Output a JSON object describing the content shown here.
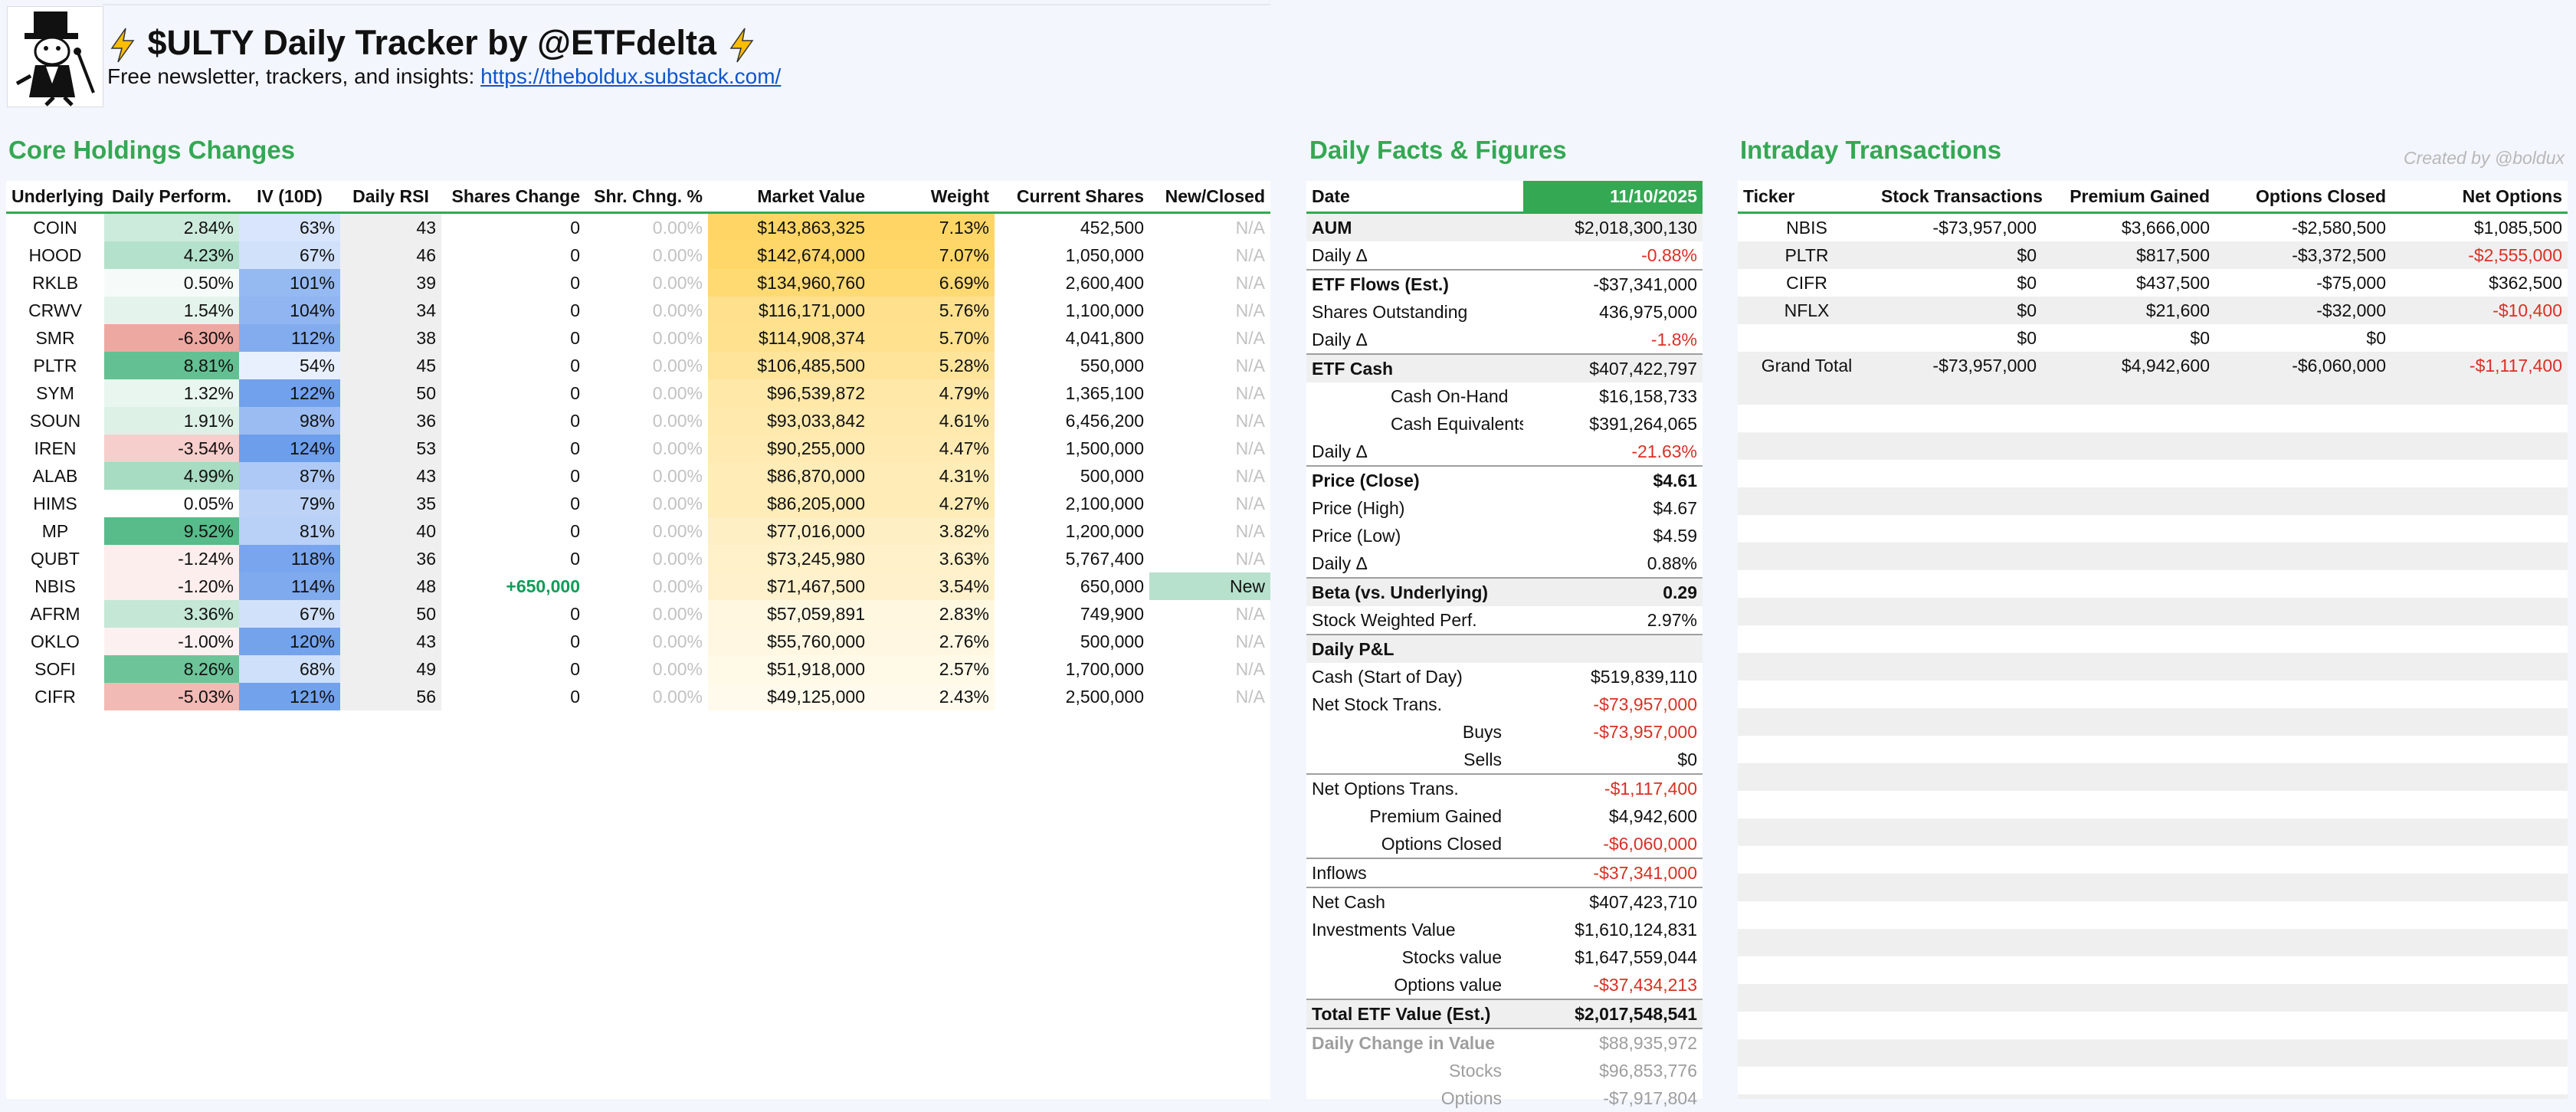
{
  "header": {
    "title": "$ULTY Daily Tracker by @ETFdelta",
    "subtitle_prefix": "Free newsletter, trackers, and insights:",
    "subtitle_link": "https://theboldux.substack.com/"
  },
  "colors": {
    "accent_green": "#34a853",
    "negative_red": "#d93025",
    "link_blue": "#1155cc",
    "weight_gold": "#fbc02d"
  },
  "holdings": {
    "title": "Core Holdings Changes",
    "columns": [
      "Underlying",
      "Daily Perform.",
      "IV (10D)",
      "Daily RSI",
      "Shares Change",
      "Shr. Chng. %",
      "Market Value",
      "Weight",
      "Current Shares",
      "New/Closed"
    ],
    "rows": [
      {
        "ticker": "COIN",
        "perf": "2.84%",
        "perf_num": 2.84,
        "iv": "63%",
        "iv_num": 63,
        "rsi": "43",
        "change": "0",
        "chg_pct": "0.00%",
        "mv": "$143,863,325",
        "weight": "7.13%",
        "weight_num": 7.13,
        "shares": "452,500",
        "status": "N/A"
      },
      {
        "ticker": "HOOD",
        "perf": "4.23%",
        "perf_num": 4.23,
        "iv": "67%",
        "iv_num": 67,
        "rsi": "46",
        "change": "0",
        "chg_pct": "0.00%",
        "mv": "$142,674,000",
        "weight": "7.07%",
        "weight_num": 7.07,
        "shares": "1,050,000",
        "status": "N/A"
      },
      {
        "ticker": "RKLB",
        "perf": "0.50%",
        "perf_num": 0.5,
        "iv": "101%",
        "iv_num": 101,
        "rsi": "39",
        "change": "0",
        "chg_pct": "0.00%",
        "mv": "$134,960,760",
        "weight": "6.69%",
        "weight_num": 6.69,
        "shares": "2,600,400",
        "status": "N/A"
      },
      {
        "ticker": "CRWV",
        "perf": "1.54%",
        "perf_num": 1.54,
        "iv": "104%",
        "iv_num": 104,
        "rsi": "34",
        "change": "0",
        "chg_pct": "0.00%",
        "mv": "$116,171,000",
        "weight": "5.76%",
        "weight_num": 5.76,
        "shares": "1,100,000",
        "status": "N/A"
      },
      {
        "ticker": "SMR",
        "perf": "-6.30%",
        "perf_num": -6.3,
        "iv": "112%",
        "iv_num": 112,
        "rsi": "38",
        "change": "0",
        "chg_pct": "0.00%",
        "mv": "$114,908,374",
        "weight": "5.70%",
        "weight_num": 5.7,
        "shares": "4,041,800",
        "status": "N/A"
      },
      {
        "ticker": "PLTR",
        "perf": "8.81%",
        "perf_num": 8.81,
        "iv": "54%",
        "iv_num": 54,
        "rsi": "45",
        "change": "0",
        "chg_pct": "0.00%",
        "mv": "$106,485,500",
        "weight": "5.28%",
        "weight_num": 5.28,
        "shares": "550,000",
        "status": "N/A"
      },
      {
        "ticker": "SYM",
        "perf": "1.32%",
        "perf_num": 1.32,
        "iv": "122%",
        "iv_num": 122,
        "rsi": "50",
        "change": "0",
        "chg_pct": "0.00%",
        "mv": "$96,539,872",
        "weight": "4.79%",
        "weight_num": 4.79,
        "shares": "1,365,100",
        "status": "N/A"
      },
      {
        "ticker": "SOUN",
        "perf": "1.91%",
        "perf_num": 1.91,
        "iv": "98%",
        "iv_num": 98,
        "rsi": "36",
        "change": "0",
        "chg_pct": "0.00%",
        "mv": "$93,033,842",
        "weight": "4.61%",
        "weight_num": 4.61,
        "shares": "6,456,200",
        "status": "N/A"
      },
      {
        "ticker": "IREN",
        "perf": "-3.54%",
        "perf_num": -3.54,
        "iv": "124%",
        "iv_num": 124,
        "rsi": "53",
        "change": "0",
        "chg_pct": "0.00%",
        "mv": "$90,255,000",
        "weight": "4.47%",
        "weight_num": 4.47,
        "shares": "1,500,000",
        "status": "N/A"
      },
      {
        "ticker": "ALAB",
        "perf": "4.99%",
        "perf_num": 4.99,
        "iv": "87%",
        "iv_num": 87,
        "rsi": "43",
        "change": "0",
        "chg_pct": "0.00%",
        "mv": "$86,870,000",
        "weight": "4.31%",
        "weight_num": 4.31,
        "shares": "500,000",
        "status": "N/A"
      },
      {
        "ticker": "HIMS",
        "perf": "0.05%",
        "perf_num": 0.05,
        "iv": "79%",
        "iv_num": 79,
        "rsi": "35",
        "change": "0",
        "chg_pct": "0.00%",
        "mv": "$86,205,000",
        "weight": "4.27%",
        "weight_num": 4.27,
        "shares": "2,100,000",
        "status": "N/A"
      },
      {
        "ticker": "MP",
        "perf": "9.52%",
        "perf_num": 9.52,
        "iv": "81%",
        "iv_num": 81,
        "rsi": "40",
        "change": "0",
        "chg_pct": "0.00%",
        "mv": "$77,016,000",
        "weight": "3.82%",
        "weight_num": 3.82,
        "shares": "1,200,000",
        "status": "N/A"
      },
      {
        "ticker": "QUBT",
        "perf": "-1.24%",
        "perf_num": -1.24,
        "iv": "118%",
        "iv_num": 118,
        "rsi": "36",
        "change": "0",
        "chg_pct": "0.00%",
        "mv": "$73,245,980",
        "weight": "3.63%",
        "weight_num": 3.63,
        "shares": "5,767,400",
        "status": "N/A"
      },
      {
        "ticker": "NBIS",
        "perf": "-1.20%",
        "perf_num": -1.2,
        "iv": "114%",
        "iv_num": 114,
        "rsi": "48",
        "change": "+650,000",
        "chg_pct": "0.00%",
        "mv": "$71,467,500",
        "weight": "3.54%",
        "weight_num": 3.54,
        "shares": "650,000",
        "status": "New"
      },
      {
        "ticker": "AFRM",
        "perf": "3.36%",
        "perf_num": 3.36,
        "iv": "67%",
        "iv_num": 67,
        "rsi": "50",
        "change": "0",
        "chg_pct": "0.00%",
        "mv": "$57,059,891",
        "weight": "2.83%",
        "weight_num": 2.83,
        "shares": "749,900",
        "status": "N/A"
      },
      {
        "ticker": "OKLO",
        "perf": "-1.00%",
        "perf_num": -1.0,
        "iv": "120%",
        "iv_num": 120,
        "rsi": "43",
        "change": "0",
        "chg_pct": "0.00%",
        "mv": "$55,760,000",
        "weight": "2.76%",
        "weight_num": 2.76,
        "shares": "500,000",
        "status": "N/A"
      },
      {
        "ticker": "SOFI",
        "perf": "8.26%",
        "perf_num": 8.26,
        "iv": "68%",
        "iv_num": 68,
        "rsi": "49",
        "change": "0",
        "chg_pct": "0.00%",
        "mv": "$51,918,000",
        "weight": "2.57%",
        "weight_num": 2.57,
        "shares": "1,700,000",
        "status": "N/A"
      },
      {
        "ticker": "CIFR",
        "perf": "-5.03%",
        "perf_num": -5.03,
        "iv": "121%",
        "iv_num": 121,
        "rsi": "56",
        "change": "0",
        "chg_pct": "0.00%",
        "mv": "$49,125,000",
        "weight": "2.43%",
        "weight_num": 2.43,
        "shares": "2,500,000",
        "status": "N/A"
      }
    ]
  },
  "facts": {
    "title": "Daily Facts & Figures",
    "date_label": "Date",
    "date_value": "11/10/2025",
    "rows": [
      {
        "label": "AUM",
        "value": "$2,018,300,130",
        "style": "bold",
        "shade": true,
        "line": false,
        "indent": 0,
        "tone": ""
      },
      {
        "label": "Daily Δ",
        "value": "-0.88%",
        "style": "",
        "shade": false,
        "line": false,
        "indent": 0,
        "tone": "red"
      },
      {
        "label": "ETF Flows (Est.)",
        "value": "-$37,341,000",
        "style": "bold",
        "shade": false,
        "line": true,
        "indent": 0,
        "tone": ""
      },
      {
        "label": "Shares Outstanding",
        "value": "436,975,000",
        "style": "",
        "shade": false,
        "line": false,
        "indent": 0,
        "tone": ""
      },
      {
        "label": "Daily Δ",
        "value": "-1.8%",
        "style": "",
        "shade": false,
        "line": false,
        "indent": 0,
        "tone": "red"
      },
      {
        "label": "ETF Cash",
        "value": "$407,422,797",
        "style": "bold",
        "shade": true,
        "line": true,
        "indent": 0,
        "tone": ""
      },
      {
        "label": "Cash On-Hand",
        "value": "$16,158,733",
        "style": "",
        "shade": false,
        "line": false,
        "indent": 2,
        "tone": ""
      },
      {
        "label": "Cash Equivalents",
        "value": "$391,264,065",
        "style": "",
        "shade": false,
        "line": false,
        "indent": 2,
        "tone": ""
      },
      {
        "label": "Daily Δ",
        "value": "-21.63%",
        "style": "",
        "shade": false,
        "line": false,
        "indent": 0,
        "tone": "red"
      },
      {
        "label": "Price (Close)",
        "value": "$4.61",
        "style": "bold",
        "shade": false,
        "line": true,
        "indent": 0,
        "tone": "bold"
      },
      {
        "label": "Price (High)",
        "value": "$4.67",
        "style": "",
        "shade": false,
        "line": false,
        "indent": 0,
        "tone": ""
      },
      {
        "label": "Price (Low)",
        "value": "$4.59",
        "style": "",
        "shade": false,
        "line": false,
        "indent": 0,
        "tone": ""
      },
      {
        "label": "Daily Δ",
        "value": "0.88%",
        "style": "",
        "shade": false,
        "line": false,
        "indent": 0,
        "tone": ""
      },
      {
        "label": "Beta (vs. Underlying)",
        "value": "0.29",
        "style": "bold",
        "shade": true,
        "line": true,
        "indent": 0,
        "tone": "bold"
      },
      {
        "label": "Stock Weighted Perf.",
        "value": "2.97%",
        "style": "",
        "shade": false,
        "line": false,
        "indent": 0,
        "tone": ""
      },
      {
        "label": "Daily P&L",
        "value": "",
        "style": "bold",
        "shade": true,
        "line": true,
        "indent": 0,
        "tone": ""
      },
      {
        "label": "Cash (Start of Day)",
        "value": "$519,839,110",
        "style": "",
        "shade": false,
        "line": false,
        "indent": 0,
        "tone": ""
      },
      {
        "label": "Net Stock Trans.",
        "value": "-$73,957,000",
        "style": "",
        "shade": false,
        "line": false,
        "indent": 0,
        "tone": "red"
      },
      {
        "label": "Buys",
        "value": "-$73,957,000",
        "style": "",
        "shade": false,
        "line": false,
        "indent": 1,
        "tone": "red"
      },
      {
        "label": "Sells",
        "value": "$0",
        "style": "",
        "shade": false,
        "line": false,
        "indent": 1,
        "tone": ""
      },
      {
        "label": "Net Options Trans.",
        "value": "-$1,117,400",
        "style": "",
        "shade": false,
        "line": true,
        "indent": 0,
        "tone": "red"
      },
      {
        "label": "Premium Gained",
        "value": "$4,942,600",
        "style": "",
        "shade": false,
        "line": false,
        "indent": 1,
        "tone": ""
      },
      {
        "label": "Options Closed",
        "value": "-$6,060,000",
        "style": "",
        "shade": false,
        "line": false,
        "indent": 1,
        "tone": "red"
      },
      {
        "label": "Inflows",
        "value": "-$37,341,000",
        "style": "",
        "shade": false,
        "line": true,
        "indent": 0,
        "tone": "red"
      },
      {
        "label": "Net Cash",
        "value": "$407,423,710",
        "style": "",
        "shade": false,
        "line": true,
        "indent": 0,
        "tone": ""
      },
      {
        "label": "Investments Value",
        "value": "$1,610,124,831",
        "style": "",
        "shade": false,
        "line": false,
        "indent": 0,
        "tone": ""
      },
      {
        "label": "Stocks value",
        "value": "$1,647,559,044",
        "style": "",
        "shade": false,
        "line": false,
        "indent": 1,
        "tone": ""
      },
      {
        "label": "Options value",
        "value": "-$37,434,213",
        "style": "",
        "shade": false,
        "line": false,
        "indent": 1,
        "tone": "red"
      },
      {
        "label": "Total ETF Value (Est.)",
        "value": "$2,017,548,541",
        "style": "bold",
        "shade": true,
        "line": true,
        "indent": 0,
        "tone": "bold"
      },
      {
        "label": "Daily Change in Value",
        "value": "$88,935,972",
        "style": "mutedbold",
        "shade": false,
        "line": true,
        "indent": 0,
        "tone": "muted"
      },
      {
        "label": "Stocks",
        "value": "$96,853,776",
        "style": "muted",
        "shade": false,
        "line": false,
        "indent": 1,
        "tone": "muted"
      },
      {
        "label": "Options",
        "value": "-$7,917,804",
        "style": "muted",
        "shade": false,
        "line": false,
        "indent": 1,
        "tone": "muted"
      }
    ]
  },
  "intraday": {
    "title": "Intraday Transactions",
    "created_by": "Created by @boldux",
    "columns": [
      "Ticker",
      "Stock Transactions",
      "Premium Gained",
      "Options Closed",
      "Net Options"
    ],
    "rows": [
      {
        "ticker": "NBIS",
        "stock": "-$73,957,000",
        "premium": "$3,666,000",
        "closed": "-$2,580,500",
        "net": "$1,085,500",
        "net_red": false
      },
      {
        "ticker": "PLTR",
        "stock": "$0",
        "premium": "$817,500",
        "closed": "-$3,372,500",
        "net": "-$2,555,000",
        "net_red": true
      },
      {
        "ticker": "CIFR",
        "stock": "$0",
        "premium": "$437,500",
        "closed": "-$75,000",
        "net": "$362,500",
        "net_red": false
      },
      {
        "ticker": "NFLX",
        "stock": "$0",
        "premium": "$21,600",
        "closed": "-$32,000",
        "net": "-$10,400",
        "net_red": true
      },
      {
        "ticker": "",
        "stock": "$0",
        "premium": "$0",
        "closed": "$0",
        "net": "",
        "net_red": false
      },
      {
        "ticker": "Grand Total",
        "stock": "-$73,957,000",
        "premium": "$4,942,600",
        "closed": "-$6,060,000",
        "net": "-$1,117,400",
        "net_red": true
      }
    ]
  }
}
